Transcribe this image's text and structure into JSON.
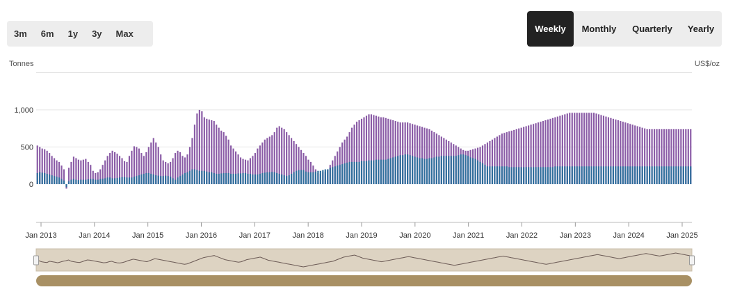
{
  "range_buttons": [
    "3m",
    "6m",
    "1y",
    "3y",
    "Max"
  ],
  "period_buttons": [
    "Weekly",
    "Monthly",
    "Quarterly",
    "Yearly"
  ],
  "active_period": "Weekly",
  "colors": {
    "bar_bottom": "#2f6e9c",
    "bar_top": "#8a5ba6",
    "navigator_bg": "#ddd3c2",
    "navigator_scrollbar": "#a89064",
    "navigator_line": "#6b5a55",
    "grid": "#e3e3e3"
  },
  "chart_data": {
    "type": "bar",
    "stacked": true,
    "ylabel_left": "Tonnes",
    "ylabel_right": "US$/oz",
    "y_ticks": [
      0,
      500,
      1000
    ],
    "y_tick_labels": [
      "0",
      "500",
      "1,000"
    ],
    "ylim": [
      -500,
      1500
    ],
    "x_tick_labels": [
      "Jan 2013",
      "Jan 2014",
      "Jan 2015",
      "Jan 2016",
      "Jan 2017",
      "Jan 2018",
      "Jan 2019",
      "Jan 2020",
      "Jan 2021",
      "Jan 2022",
      "Jan 2023",
      "Jan 2024",
      "Jan 2025"
    ],
    "x_range": [
      "Jan 2013",
      "Feb 2025"
    ],
    "grid": true,
    "series": [
      {
        "role": "bottom",
        "values": [
          150,
          160,
          155,
          150,
          140,
          130,
          120,
          110,
          100,
          90,
          70,
          50,
          -40,
          40,
          60,
          70,
          60,
          55,
          60,
          60,
          60,
          65,
          70,
          70,
          60,
          60,
          70,
          75,
          80,
          90,
          90,
          80,
          80,
          85,
          90,
          95,
          95,
          90,
          90,
          90,
          100,
          110,
          120,
          130,
          140,
          150,
          150,
          140,
          130,
          120,
          115,
          110,
          110,
          115,
          110,
          100,
          80,
          60,
          90,
          110,
          130,
          150,
          160,
          180,
          200,
          200,
          190,
          180,
          180,
          180,
          170,
          160,
          160,
          150,
          140,
          140,
          145,
          150,
          150,
          150,
          140,
          140,
          140,
          145,
          145,
          150,
          150,
          140,
          140,
          130,
          130,
          130,
          140,
          150,
          155,
          160,
          160,
          165,
          160,
          150,
          140,
          130,
          120,
          110,
          120,
          140,
          160,
          180,
          190,
          190,
          190,
          170,
          160,
          160,
          160,
          170,
          180,
          180,
          190,
          200,
          200,
          220,
          230,
          240,
          250,
          260,
          270,
          280,
          290,
          300,
          300,
          300,
          300,
          300,
          310,
          310,
          310,
          320,
          320,
          320,
          330,
          330,
          330,
          330,
          330,
          340,
          350,
          360,
          370,
          380,
          390,
          390,
          400,
          400,
          390,
          380,
          370,
          360,
          350,
          350,
          340,
          340,
          350,
          350,
          360,
          370,
          370,
          380,
          380,
          380,
          380,
          380,
          380,
          380,
          390,
          400,
          400,
          390,
          380,
          360,
          350,
          340,
          320,
          300,
          280,
          260,
          240,
          240,
          240,
          240,
          240,
          240,
          240,
          240,
          240,
          230,
          230,
          230,
          230,
          230,
          230,
          230,
          230,
          230,
          230,
          230,
          230,
          230,
          230,
          230,
          230,
          230,
          230,
          230,
          240,
          240,
          240,
          240,
          240,
          240,
          240,
          240,
          240,
          240,
          240,
          240,
          240,
          240,
          240,
          240,
          240,
          240,
          240,
          240,
          240,
          240,
          240,
          240,
          240,
          240,
          240,
          240,
          240,
          240,
          240,
          240,
          240,
          240,
          240,
          240,
          240,
          240,
          240,
          240,
          240,
          240,
          240,
          240,
          240,
          240,
          240,
          240,
          240,
          240,
          240,
          240,
          240,
          240,
          240,
          240,
          240,
          240,
          240,
          240,
          240,
          240,
          240
        ]
      },
      {
        "role": "top",
        "values": [
          520,
          500,
          480,
          470,
          450,
          420,
          380,
          350,
          320,
          300,
          250,
          200,
          -60,
          220,
          300,
          370,
          350,
          330,
          320,
          330,
          340,
          300,
          260,
          180,
          150,
          160,
          200,
          260,
          320,
          380,
          420,
          450,
          430,
          410,
          380,
          350,
          310,
          300,
          380,
          450,
          510,
          500,
          480,
          420,
          380,
          430,
          500,
          560,
          620,
          560,
          500,
          400,
          320,
          300,
          280,
          300,
          350,
          420,
          450,
          430,
          380,
          360,
          400,
          500,
          620,
          800,
          950,
          1000,
          980,
          900,
          880,
          870,
          860,
          850,
          800,
          760,
          720,
          700,
          650,
          600,
          520,
          480,
          440,
          400,
          360,
          340,
          330,
          320,
          350,
          380,
          420,
          480,
          520,
          560,
          600,
          620,
          640,
          660,
          700,
          760,
          780,
          760,
          740,
          700,
          660,
          620,
          580,
          540,
          500,
          460,
          420,
          380,
          330,
          300,
          250,
          200,
          150,
          140,
          160,
          170,
          200,
          260,
          320,
          380,
          440,
          500,
          560,
          600,
          640,
          700,
          760,
          800,
          840,
          860,
          880,
          900,
          920,
          940,
          940,
          930,
          920,
          910,
          900,
          900,
          890,
          880,
          870,
          860,
          850,
          840,
          830,
          830,
          830,
          830,
          820,
          810,
          800,
          790,
          780,
          770,
          760,
          750,
          740,
          720,
          700,
          680,
          660,
          640,
          620,
          600,
          580,
          560,
          540,
          520,
          500,
          480,
          460,
          450,
          450,
          460,
          470,
          480,
          490,
          500,
          520,
          540,
          560,
          580,
          600,
          620,
          640,
          660,
          680,
          690,
          700,
          710,
          720,
          730,
          740,
          750,
          760,
          770,
          780,
          790,
          800,
          810,
          820,
          830,
          840,
          850,
          860,
          870,
          880,
          890,
          900,
          910,
          920,
          930,
          940,
          950,
          960,
          960,
          960,
          960,
          960,
          960,
          960,
          960,
          960,
          960,
          960,
          950,
          940,
          930,
          920,
          910,
          900,
          890,
          880,
          870,
          860,
          850,
          840,
          830,
          820,
          810,
          800,
          790,
          780,
          770,
          760,
          750,
          740,
          740,
          740,
          740,
          740,
          740,
          740,
          740,
          740,
          740,
          740,
          740,
          740,
          740,
          740,
          740,
          740,
          740,
          740
        ]
      }
    ],
    "navigator": {
      "type": "line",
      "values": [
        40,
        42,
        38,
        36,
        35,
        40,
        38,
        36,
        34,
        37,
        40,
        42,
        45,
        40,
        38,
        36,
        35,
        38,
        42,
        45,
        44,
        42,
        40,
        38,
        36,
        34,
        35,
        38,
        40,
        36,
        34,
        33,
        35,
        38,
        42,
        45,
        48,
        46,
        44,
        42,
        40,
        38,
        42,
        46,
        50,
        48,
        46,
        44,
        42,
        40,
        38,
        36,
        34,
        32,
        30,
        28,
        30,
        34,
        38,
        42,
        46,
        50,
        54,
        56,
        58,
        60,
        62,
        58,
        54,
        50,
        46,
        44,
        42,
        40,
        38,
        36,
        38,
        42,
        46,
        48,
        50,
        52,
        54,
        56,
        52,
        48,
        44,
        42,
        40,
        38,
        36,
        34,
        32,
        30,
        28,
        26,
        24,
        22,
        20,
        18,
        20,
        22,
        24,
        26,
        28,
        30,
        32,
        34,
        36,
        38,
        40,
        44,
        48,
        52,
        56,
        58,
        60,
        62,
        64,
        60,
        56,
        52,
        50,
        48,
        46,
        44,
        42,
        40,
        38,
        40,
        42,
        44,
        46,
        48,
        50,
        52,
        54,
        56,
        58,
        56,
        54,
        52,
        50,
        48,
        46,
        44,
        42,
        40,
        38,
        36,
        34,
        32,
        30,
        28,
        26,
        24,
        26,
        28,
        30,
        32,
        34,
        36,
        38,
        40,
        42,
        44,
        46,
        48,
        50,
        52,
        54,
        56,
        58,
        60,
        58,
        56,
        54,
        52,
        50,
        48,
        46,
        44,
        42,
        40,
        38,
        36,
        34,
        32,
        30,
        28,
        30,
        32,
        34,
        36,
        38,
        40,
        42,
        44,
        46,
        48,
        50,
        52,
        54,
        56,
        58,
        60,
        62,
        64,
        66,
        64,
        62,
        60,
        58,
        56,
        54,
        52,
        50,
        52,
        54,
        56,
        58,
        60,
        62,
        64,
        66,
        68,
        70,
        68,
        66,
        64,
        62,
        60,
        62,
        64,
        66,
        68,
        70,
        72,
        70,
        68,
        66,
        64,
        62,
        60
      ]
    }
  }
}
